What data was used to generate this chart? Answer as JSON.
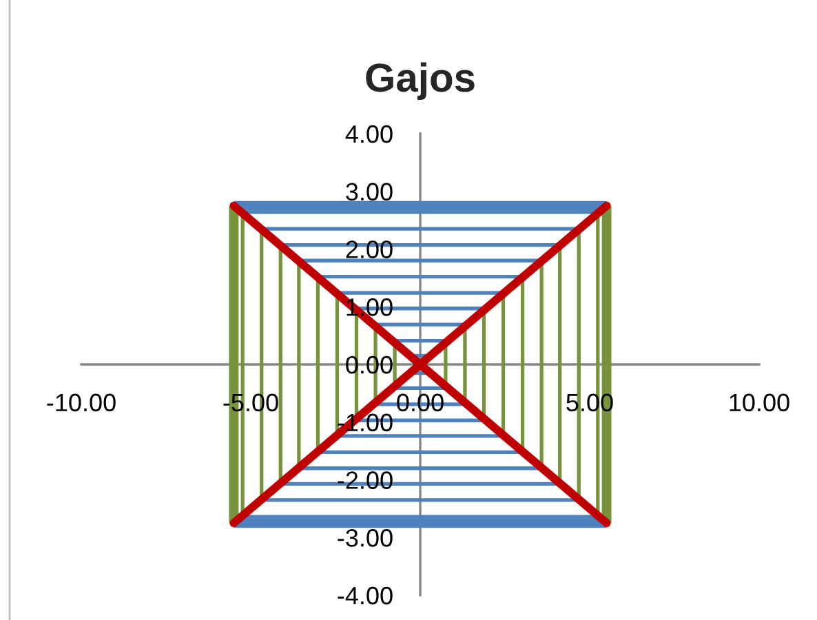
{
  "chart_data": {
    "type": "line",
    "title": "Gajos",
    "xlim": [
      -10,
      10
    ],
    "ylim": [
      -4,
      4
    ],
    "xticks": [
      {
        "value": -10,
        "label": "-10.00"
      },
      {
        "value": -5,
        "label": "-5.00"
      },
      {
        "value": 0,
        "label": "0.00"
      },
      {
        "value": 5,
        "label": "5.00"
      },
      {
        "value": 10,
        "label": "10.00"
      }
    ],
    "yticks": [
      {
        "value": -4,
        "label": "-4.00"
      },
      {
        "value": -3,
        "label": "-3.00"
      },
      {
        "value": -2,
        "label": "-2.00"
      },
      {
        "value": -1,
        "label": "-1.00"
      },
      {
        "value": 0,
        "label": "0.00"
      },
      {
        "value": 1,
        "label": "1.00"
      },
      {
        "value": 2,
        "label": "2.00"
      },
      {
        "value": 3,
        "label": "3.00"
      },
      {
        "value": 4,
        "label": "4.00"
      }
    ],
    "series": [
      {
        "color": "#77933c",
        "x": [
          -0.75,
          -0.75
        ],
        "values": [
          -0.38,
          0.38
        ]
      },
      {
        "color": "#77933c",
        "x": [
          0.75,
          0.75
        ],
        "values": [
          -0.38,
          0.38
        ]
      },
      {
        "color": "#77933c",
        "x": [
          -1.32,
          -1.32
        ],
        "values": [
          -0.66,
          0.66
        ]
      },
      {
        "color": "#77933c",
        "x": [
          1.32,
          1.32
        ],
        "values": [
          -0.66,
          0.66
        ]
      },
      {
        "color": "#77933c",
        "x": [
          -1.88,
          -1.88
        ],
        "values": [
          -0.94,
          0.94
        ]
      },
      {
        "color": "#77933c",
        "x": [
          1.88,
          1.88
        ],
        "values": [
          -0.94,
          0.94
        ]
      },
      {
        "color": "#77933c",
        "x": [
          -2.45,
          -2.45
        ],
        "values": [
          -1.22,
          1.22
        ]
      },
      {
        "color": "#77933c",
        "x": [
          2.45,
          2.45
        ],
        "values": [
          -1.22,
          1.22
        ]
      },
      {
        "color": "#77933c",
        "x": [
          -3.02,
          -3.02
        ],
        "values": [
          -1.51,
          1.51
        ]
      },
      {
        "color": "#77933c",
        "x": [
          3.02,
          3.02
        ],
        "values": [
          -1.51,
          1.51
        ]
      },
      {
        "color": "#77933c",
        "x": [
          -3.58,
          -3.58
        ],
        "values": [
          -1.79,
          1.79
        ]
      },
      {
        "color": "#77933c",
        "x": [
          3.58,
          3.58
        ],
        "values": [
          -1.79,
          1.79
        ]
      },
      {
        "color": "#77933c",
        "x": [
          -4.12,
          -4.12
        ],
        "values": [
          -2.06,
          2.06
        ]
      },
      {
        "color": "#77933c",
        "x": [
          4.12,
          4.12
        ],
        "values": [
          -2.06,
          2.06
        ]
      },
      {
        "color": "#77933c",
        "x": [
          -4.68,
          -4.68
        ],
        "values": [
          -2.34,
          2.34
        ]
      },
      {
        "color": "#77933c",
        "x": [
          4.68,
          4.68
        ],
        "values": [
          -2.34,
          2.34
        ]
      },
      {
        "color": "#77933c",
        "x": [
          -5.24,
          -5.24
        ],
        "values": [
          -2.62,
          2.62
        ]
      },
      {
        "color": "#77933c",
        "x": [
          5.24,
          5.24
        ],
        "values": [
          -2.62,
          2.62
        ]
      },
      {
        "color": "#77933c",
        "x": [
          -5.5,
          -5.5
        ],
        "values": [
          -2.75,
          2.75
        ]
      },
      {
        "color": "#77933c",
        "x": [
          5.5,
          5.5
        ],
        "values": [
          -2.75,
          2.75
        ]
      },
      {
        "color": "#4f81bd",
        "x": [
          -0.3,
          0.3
        ],
        "values": [
          0.15,
          0.15
        ]
      },
      {
        "color": "#4f81bd",
        "x": [
          -0.3,
          0.3
        ],
        "values": [
          -0.15,
          -0.15
        ]
      },
      {
        "color": "#4f81bd",
        "x": [
          -0.82,
          0.82
        ],
        "values": [
          0.41,
          0.41
        ]
      },
      {
        "color": "#4f81bd",
        "x": [
          -0.82,
          0.82
        ],
        "values": [
          -0.41,
          -0.41
        ]
      },
      {
        "color": "#4f81bd",
        "x": [
          -1.38,
          1.38
        ],
        "values": [
          0.69,
          0.69
        ]
      },
      {
        "color": "#4f81bd",
        "x": [
          -1.38,
          1.38
        ],
        "values": [
          -0.69,
          -0.69
        ]
      },
      {
        "color": "#4f81bd",
        "x": [
          -1.94,
          1.94
        ],
        "values": [
          0.97,
          0.97
        ]
      },
      {
        "color": "#4f81bd",
        "x": [
          -1.94,
          1.94
        ],
        "values": [
          -0.97,
          -0.97
        ]
      },
      {
        "color": "#4f81bd",
        "x": [
          -2.48,
          2.48
        ],
        "values": [
          1.24,
          1.24
        ]
      },
      {
        "color": "#4f81bd",
        "x": [
          -2.48,
          2.48
        ],
        "values": [
          -1.24,
          -1.24
        ]
      },
      {
        "color": "#4f81bd",
        "x": [
          -3.04,
          3.04
        ],
        "values": [
          1.52,
          1.52
        ]
      },
      {
        "color": "#4f81bd",
        "x": [
          -3.04,
          3.04
        ],
        "values": [
          -1.52,
          -1.52
        ]
      },
      {
        "color": "#4f81bd",
        "x": [
          -3.6,
          3.6
        ],
        "values": [
          1.8,
          1.8
        ]
      },
      {
        "color": "#4f81bd",
        "x": [
          -3.6,
          3.6
        ],
        "values": [
          -1.8,
          -1.8
        ]
      },
      {
        "color": "#4f81bd",
        "x": [
          -4.14,
          4.14
        ],
        "values": [
          2.07,
          2.07
        ]
      },
      {
        "color": "#4f81bd",
        "x": [
          -4.14,
          4.14
        ],
        "values": [
          -2.07,
          -2.07
        ]
      },
      {
        "color": "#4f81bd",
        "x": [
          -4.7,
          4.7
        ],
        "values": [
          2.35,
          2.35
        ]
      },
      {
        "color": "#4f81bd",
        "x": [
          -4.7,
          4.7
        ],
        "values": [
          -2.35,
          -2.35
        ]
      },
      {
        "color": "#4f81bd",
        "x": [
          -5.28,
          5.28
        ],
        "values": [
          2.64,
          2.64
        ]
      },
      {
        "color": "#4f81bd",
        "x": [
          -5.28,
          5.28
        ],
        "values": [
          -2.64,
          -2.64
        ]
      },
      {
        "color": "#4f81bd",
        "x": [
          -5.5,
          5.5
        ],
        "values": [
          2.75,
          2.75
        ]
      },
      {
        "color": "#4f81bd",
        "x": [
          -5.5,
          5.5
        ],
        "values": [
          -2.75,
          -2.75
        ]
      },
      {
        "color": "#c00000",
        "x": [
          -5.5,
          5.5
        ],
        "values": [
          2.75,
          -2.75
        ]
      },
      {
        "color": "#c00000",
        "x": [
          -5.5,
          5.5
        ],
        "values": [
          -2.75,
          2.75
        ]
      }
    ]
  }
}
